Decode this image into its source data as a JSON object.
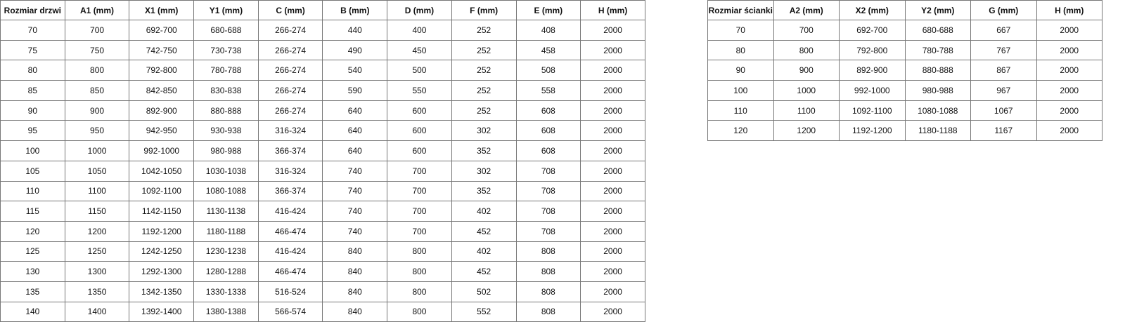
{
  "doors_table": {
    "headers": [
      "Rozmiar drzwi",
      "A1 (mm)",
      "X1 (mm)",
      "Y1 (mm)",
      "C (mm)",
      "B (mm)",
      "D (mm)",
      "F (mm)",
      "E (mm)",
      "H (mm)"
    ],
    "rows": [
      [
        "70",
        "700",
        "692-700",
        "680-688",
        "266-274",
        "440",
        "400",
        "252",
        "408",
        "2000"
      ],
      [
        "75",
        "750",
        "742-750",
        "730-738",
        "266-274",
        "490",
        "450",
        "252",
        "458",
        "2000"
      ],
      [
        "80",
        "800",
        "792-800",
        "780-788",
        "266-274",
        "540",
        "500",
        "252",
        "508",
        "2000"
      ],
      [
        "85",
        "850",
        "842-850",
        "830-838",
        "266-274",
        "590",
        "550",
        "252",
        "558",
        "2000"
      ],
      [
        "90",
        "900",
        "892-900",
        "880-888",
        "266-274",
        "640",
        "600",
        "252",
        "608",
        "2000"
      ],
      [
        "95",
        "950",
        "942-950",
        "930-938",
        "316-324",
        "640",
        "600",
        "302",
        "608",
        "2000"
      ],
      [
        "100",
        "1000",
        "992-1000",
        "980-988",
        "366-374",
        "640",
        "600",
        "352",
        "608",
        "2000"
      ],
      [
        "105",
        "1050",
        "1042-1050",
        "1030-1038",
        "316-324",
        "740",
        "700",
        "302",
        "708",
        "2000"
      ],
      [
        "110",
        "1100",
        "1092-1100",
        "1080-1088",
        "366-374",
        "740",
        "700",
        "352",
        "708",
        "2000"
      ],
      [
        "115",
        "1150",
        "1142-1150",
        "1130-1138",
        "416-424",
        "740",
        "700",
        "402",
        "708",
        "2000"
      ],
      [
        "120",
        "1200",
        "1192-1200",
        "1180-1188",
        "466-474",
        "740",
        "700",
        "452",
        "708",
        "2000"
      ],
      [
        "125",
        "1250",
        "1242-1250",
        "1230-1238",
        "416-424",
        "840",
        "800",
        "402",
        "808",
        "2000"
      ],
      [
        "130",
        "1300",
        "1292-1300",
        "1280-1288",
        "466-474",
        "840",
        "800",
        "452",
        "808",
        "2000"
      ],
      [
        "135",
        "1350",
        "1342-1350",
        "1330-1338",
        "516-524",
        "840",
        "800",
        "502",
        "808",
        "2000"
      ],
      [
        "140",
        "1400",
        "1392-1400",
        "1380-1388",
        "566-574",
        "840",
        "800",
        "552",
        "808",
        "2000"
      ]
    ]
  },
  "wall_table": {
    "headers": [
      "Rozmiar ścianki",
      "A2 (mm)",
      "X2 (mm)",
      "Y2 (mm)",
      "G (mm)",
      "H (mm)"
    ],
    "rows": [
      [
        "70",
        "700",
        "692-700",
        "680-688",
        "667",
        "2000"
      ],
      [
        "80",
        "800",
        "792-800",
        "780-788",
        "767",
        "2000"
      ],
      [
        "90",
        "900",
        "892-900",
        "880-888",
        "867",
        "2000"
      ],
      [
        "100",
        "1000",
        "992-1000",
        "980-988",
        "967",
        "2000"
      ],
      [
        "110",
        "1100",
        "1092-1100",
        "1080-1088",
        "1067",
        "2000"
      ],
      [
        "120",
        "1200",
        "1192-1200",
        "1180-1188",
        "1167",
        "2000"
      ]
    ]
  }
}
